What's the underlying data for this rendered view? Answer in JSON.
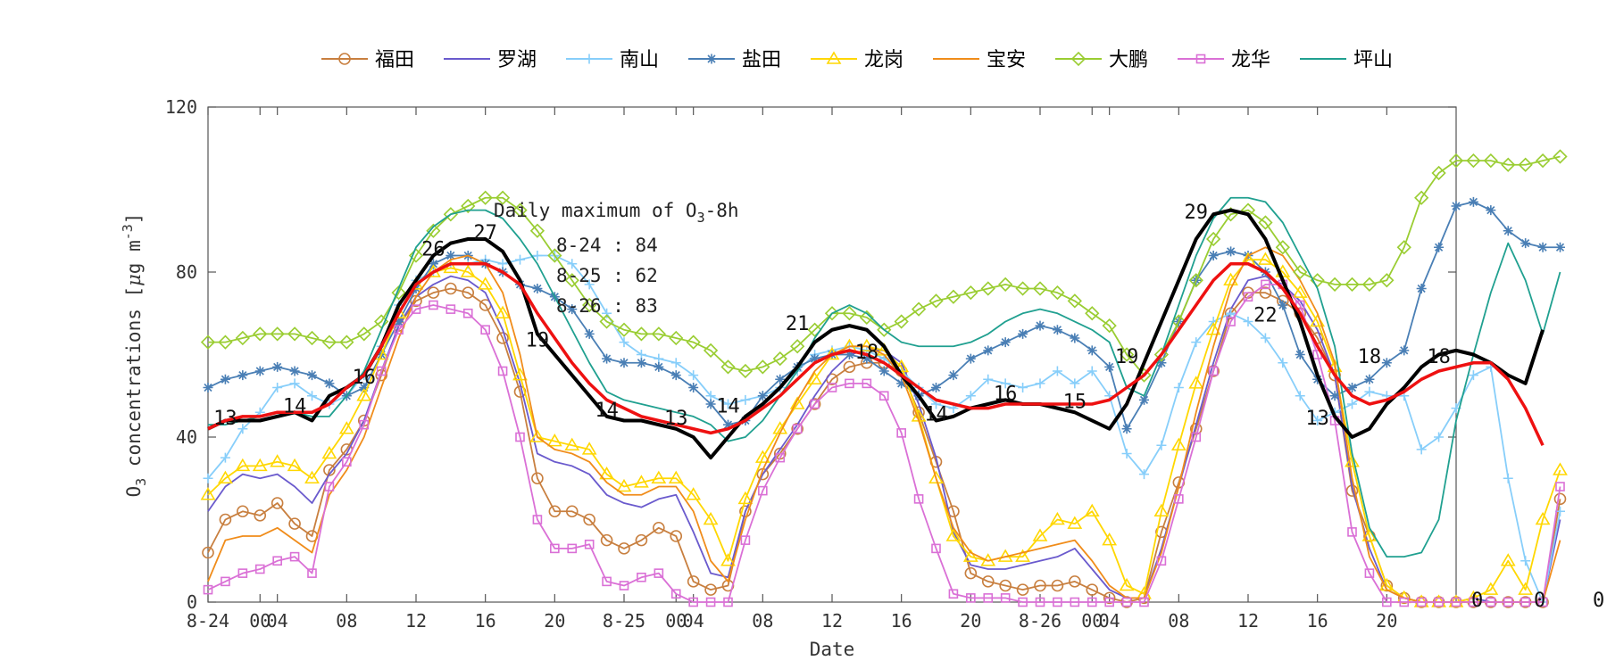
{
  "chart_data": {
    "type": "line",
    "title": "",
    "xlabel": "Date",
    "ylabel_parts": {
      "pre": "O",
      "sub": "3",
      "mid": " concentrations [",
      "mu": "μ",
      "unit": "g m",
      "sup": "-3",
      "post": "]"
    },
    "ylim": [
      0,
      120
    ],
    "yticks": [
      0,
      40,
      80,
      120
    ],
    "xlim": [
      0,
      72
    ],
    "xticks": [
      {
        "x": 0,
        "label": "8-24"
      },
      {
        "x": 3,
        "label": "00"
      },
      {
        "x": 4,
        "label": "04"
      },
      {
        "x": 8,
        "label": "08"
      },
      {
        "x": 12,
        "label": "12"
      },
      {
        "x": 16,
        "label": "16"
      },
      {
        "x": 20,
        "label": "20"
      },
      {
        "x": 24,
        "label": "8-25"
      },
      {
        "x": 27,
        "label": "00"
      },
      {
        "x": 28,
        "label": "04"
      },
      {
        "x": 32,
        "label": "08"
      },
      {
        "x": 36,
        "label": "12"
      },
      {
        "x": 40,
        "label": "16"
      },
      {
        "x": 44,
        "label": "20"
      },
      {
        "x": 48,
        "label": "8-26"
      },
      {
        "x": 51,
        "label": "00"
      },
      {
        "x": 52,
        "label": "04"
      },
      {
        "x": 56,
        "label": "08"
      },
      {
        "x": 60,
        "label": "12"
      },
      {
        "x": 64,
        "label": "16"
      },
      {
        "x": 68,
        "label": "20"
      }
    ],
    "grid": false,
    "legend_position": "top",
    "annotation": {
      "title_pre": "Daily maximum of O",
      "title_sub": "3",
      "title_post": "-8h",
      "lines": [
        "8-24 : 84",
        "8-25 : 62",
        "8-26 : 83"
      ]
    },
    "peak_labels": [
      {
        "x": 1,
        "y": 43,
        "label": "13"
      },
      {
        "x": 5,
        "y": 46,
        "label": "14"
      },
      {
        "x": 9,
        "y": 53,
        "label": "16"
      },
      {
        "x": 13,
        "y": 84,
        "label": "26"
      },
      {
        "x": 16,
        "y": 88,
        "label": "27"
      },
      {
        "x": 19,
        "y": 62,
        "label": "19"
      },
      {
        "x": 23,
        "y": 45,
        "label": "14"
      },
      {
        "x": 27,
        "y": 43,
        "label": "13"
      },
      {
        "x": 30,
        "y": 46,
        "label": "14"
      },
      {
        "x": 34,
        "y": 66,
        "label": "21"
      },
      {
        "x": 38,
        "y": 59,
        "label": "18"
      },
      {
        "x": 42,
        "y": 44,
        "label": "14"
      },
      {
        "x": 46,
        "y": 49,
        "label": "16"
      },
      {
        "x": 50,
        "y": 47,
        "label": "15"
      },
      {
        "x": 53,
        "y": 58,
        "label": "19"
      },
      {
        "x": 57,
        "y": 93,
        "label": "29"
      },
      {
        "x": 61,
        "y": 68,
        "label": "22"
      },
      {
        "x": 64,
        "y": 43,
        "label": "13"
      },
      {
        "x": 67,
        "y": 58,
        "label": "18"
      },
      {
        "x": 71,
        "y": 58,
        "label": "18"
      }
    ],
    "right_labels": [
      "0",
      "0",
      "0"
    ],
    "series": [
      {
        "name": "福田",
        "color": "#c87f3f",
        "marker": "circle",
        "values": [
          12,
          20,
          22,
          21,
          24,
          19,
          16,
          32,
          37,
          44,
          55,
          67,
          73,
          75,
          76,
          75,
          72,
          64,
          51,
          30,
          22,
          22,
          20,
          15,
          13,
          15,
          18,
          16,
          5,
          3,
          4,
          22,
          31,
          36,
          42,
          48,
          54,
          57,
          58,
          58,
          56,
          46,
          34,
          22,
          7,
          5,
          4,
          3,
          4,
          4,
          5,
          3,
          1,
          0,
          1,
          17,
          29,
          42,
          56,
          70,
          75,
          75,
          73,
          70,
          64,
          55,
          27,
          16,
          4,
          1,
          0,
          0,
          0,
          0,
          0,
          0,
          0,
          0,
          25
        ]
      },
      {
        "name": "罗湖",
        "color": "#6a5acd",
        "marker": "none",
        "values": [
          22,
          28,
          31,
          30,
          31,
          28,
          24,
          31,
          36,
          44,
          56,
          67,
          74,
          77,
          79,
          78,
          75,
          66,
          53,
          36,
          34,
          33,
          31,
          26,
          24,
          23,
          25,
          26,
          17,
          7,
          6,
          22,
          31,
          37,
          43,
          50,
          56,
          60,
          61,
          61,
          58,
          48,
          35,
          17,
          9,
          8,
          8,
          9,
          10,
          11,
          13,
          8,
          3,
          1,
          1,
          13,
          28,
          43,
          58,
          71,
          78,
          79,
          77,
          73,
          66,
          55,
          28,
          13,
          3,
          1,
          0,
          0,
          0,
          1,
          0,
          0,
          0,
          0,
          20
        ]
      },
      {
        "name": "南山",
        "color": "#87cefa",
        "marker": "plus",
        "values": [
          30,
          35,
          42,
          46,
          52,
          53,
          50,
          48,
          50,
          55,
          62,
          72,
          78,
          80,
          82,
          82,
          83,
          82,
          83,
          84,
          84,
          82,
          77,
          70,
          63,
          60,
          59,
          58,
          55,
          50,
          48,
          49,
          50,
          52,
          56,
          60,
          61,
          62,
          61,
          59,
          56,
          52,
          48,
          47,
          50,
          54,
          53,
          52,
          53,
          56,
          53,
          56,
          50,
          36,
          31,
          38,
          52,
          63,
          68,
          70,
          68,
          64,
          58,
          50,
          44,
          46,
          48,
          51,
          50,
          50,
          37,
          40,
          47,
          55,
          57,
          30,
          10,
          0,
          22
        ]
      },
      {
        "name": "盐田",
        "color": "#4a7fb5",
        "marker": "asterisk",
        "values": [
          52,
          54,
          55,
          56,
          57,
          56,
          55,
          53,
          50,
          52,
          60,
          68,
          76,
          82,
          84,
          84,
          82,
          80,
          77,
          76,
          74,
          71,
          65,
          59,
          58,
          58,
          57,
          55,
          52,
          48,
          43,
          44,
          50,
          54,
          57,
          59,
          60,
          60,
          59,
          56,
          53,
          50,
          52,
          55,
          59,
          61,
          63,
          65,
          67,
          66,
          64,
          61,
          57,
          42,
          49,
          58,
          68,
          78,
          84,
          85,
          84,
          80,
          72,
          60,
          54,
          50,
          52,
          54,
          58,
          61,
          76,
          86,
          96,
          97,
          95,
          90,
          87,
          86,
          86
        ]
      },
      {
        "name": "龙岗",
        "color": "#ffd700",
        "marker": "triangle",
        "values": [
          26,
          30,
          33,
          33,
          34,
          33,
          30,
          36,
          42,
          50,
          60,
          70,
          77,
          80,
          81,
          80,
          77,
          70,
          55,
          40,
          39,
          38,
          37,
          31,
          28,
          29,
          30,
          30,
          26,
          20,
          10,
          25,
          35,
          42,
          48,
          54,
          60,
          62,
          62,
          61,
          57,
          45,
          30,
          16,
          11,
          10,
          11,
          11,
          16,
          20,
          19,
          22,
          15,
          4,
          2,
          22,
          38,
          53,
          66,
          78,
          83,
          83,
          80,
          75,
          68,
          57,
          34,
          16,
          4,
          1,
          0,
          0,
          0,
          1,
          3,
          10,
          3,
          20,
          32
        ]
      },
      {
        "name": "宝安",
        "color": "#f08c1a",
        "marker": "none",
        "values": [
          5,
          15,
          16,
          16,
          18,
          15,
          12,
          26,
          32,
          40,
          52,
          64,
          74,
          80,
          83,
          84,
          82,
          75,
          60,
          40,
          37,
          36,
          34,
          29,
          26,
          26,
          28,
          28,
          22,
          10,
          5,
          20,
          32,
          41,
          49,
          56,
          60,
          62,
          62,
          60,
          55,
          44,
          30,
          18,
          12,
          10,
          11,
          12,
          13,
          14,
          15,
          10,
          4,
          1,
          1,
          12,
          28,
          46,
          62,
          76,
          84,
          86,
          84,
          78,
          70,
          58,
          30,
          11,
          3,
          1,
          0,
          0,
          0,
          0,
          0,
          0,
          0,
          0,
          15
        ]
      },
      {
        "name": "大鹏",
        "color": "#9acd32",
        "marker": "diamond",
        "values": [
          63,
          63,
          64,
          65,
          65,
          65,
          64,
          63,
          63,
          65,
          68,
          75,
          84,
          90,
          94,
          96,
          98,
          98,
          95,
          90,
          84,
          78,
          72,
          68,
          66,
          65,
          65,
          64,
          63,
          61,
          57,
          56,
          57,
          59,
          62,
          66,
          70,
          70,
          69,
          66,
          68,
          71,
          73,
          74,
          75,
          76,
          77,
          76,
          76,
          75,
          73,
          70,
          67,
          60,
          55,
          60,
          68,
          78,
          88,
          94,
          95,
          92,
          86,
          80,
          78,
          77,
          77,
          77,
          78,
          86,
          98,
          104,
          107,
          107,
          107,
          106,
          106,
          107,
          108
        ]
      },
      {
        "name": "龙华",
        "color": "#da70d6",
        "marker": "square",
        "values": [
          3,
          5,
          7,
          8,
          10,
          11,
          7,
          28,
          34,
          43,
          56,
          66,
          71,
          72,
          71,
          70,
          66,
          56,
          40,
          20,
          13,
          13,
          14,
          5,
          4,
          6,
          7,
          2,
          0,
          0,
          0,
          15,
          27,
          35,
          42,
          48,
          52,
          53,
          53,
          50,
          41,
          25,
          13,
          2,
          1,
          1,
          1,
          0,
          0,
          0,
          0,
          0,
          0,
          0,
          0,
          10,
          25,
          40,
          56,
          68,
          74,
          77,
          77,
          72,
          60,
          44,
          17,
          7,
          0,
          0,
          0,
          0,
          0,
          0,
          0,
          0,
          0,
          0,
          28
        ]
      },
      {
        "name": "坪山",
        "color": "#20a090",
        "marker": "none",
        "values": [
          43,
          43,
          44,
          45,
          46,
          46,
          45,
          45,
          50,
          56,
          66,
          76,
          86,
          91,
          94,
          95,
          95,
          93,
          88,
          82,
          74,
          66,
          58,
          51,
          49,
          48,
          47,
          46,
          45,
          43,
          39,
          40,
          44,
          50,
          56,
          64,
          70,
          72,
          70,
          66,
          63,
          62,
          62,
          62,
          63,
          65,
          68,
          70,
          71,
          70,
          68,
          66,
          63,
          52,
          50,
          60,
          72,
          84,
          93,
          98,
          98,
          97,
          92,
          84,
          76,
          62,
          36,
          18,
          11,
          11,
          12,
          20,
          44,
          60,
          75,
          87,
          78,
          65,
          80
        ]
      },
      {
        "name": "",
        "color": "#000000",
        "marker": "none",
        "width": 4,
        "values": [
          42,
          44,
          44,
          44,
          45,
          46,
          44,
          50,
          52,
          55,
          62,
          72,
          78,
          84,
          87,
          88,
          88,
          85,
          78,
          65,
          60,
          55,
          50,
          45,
          44,
          44,
          43,
          42,
          40,
          35,
          40,
          45,
          48,
          52,
          57,
          63,
          66,
          67,
          66,
          62,
          55,
          50,
          44,
          45,
          47,
          48,
          49,
          48,
          48,
          47,
          46,
          44,
          42,
          48,
          58,
          68,
          78,
          88,
          94,
          95,
          94,
          88,
          78,
          68,
          55,
          45,
          40,
          42,
          48,
          52,
          57,
          60,
          61,
          60,
          58,
          55,
          53,
          66
        ]
      },
      {
        "name": "",
        "color": "#ee1111",
        "marker": "none",
        "width": 3.5,
        "values": [
          42,
          44,
          45,
          45,
          46,
          46,
          46,
          48,
          52,
          55,
          62,
          70,
          77,
          80,
          82,
          82,
          82,
          80,
          77,
          70,
          64,
          58,
          53,
          49,
          47,
          45,
          44,
          43,
          42,
          41,
          42,
          44,
          47,
          50,
          54,
          58,
          60,
          61,
          60,
          58,
          55,
          52,
          49,
          48,
          47,
          47,
          48,
          48,
          48,
          48,
          48,
          48,
          49,
          52,
          55,
          60,
          66,
          72,
          78,
          82,
          82,
          80,
          76,
          70,
          62,
          55,
          50,
          48,
          49,
          51,
          54,
          56,
          57,
          58,
          58,
          54,
          47,
          38
        ]
      }
    ]
  }
}
